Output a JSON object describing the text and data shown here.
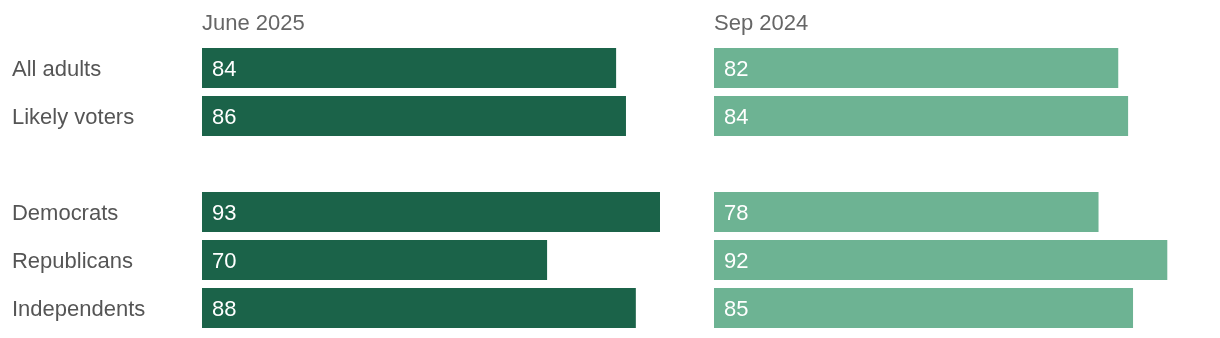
{
  "chart_data": [
    {
      "type": "bar",
      "orientation": "horizontal",
      "title": "June 2025",
      "categories": [
        "All adults",
        "Likely voters",
        null,
        "Democrats",
        "Republicans",
        "Independents"
      ],
      "values": [
        84,
        86,
        null,
        93,
        70,
        88
      ],
      "color": "#1b6349",
      "data_labels": true,
      "tick_labels": "y"
    },
    {
      "type": "bar",
      "orientation": "horizontal",
      "title": "Sep 2024",
      "values": [
        82,
        84,
        null,
        78,
        92,
        85
      ],
      "color": "#6db393",
      "data_labels": true,
      "tick_labels": false
    }
  ]
}
